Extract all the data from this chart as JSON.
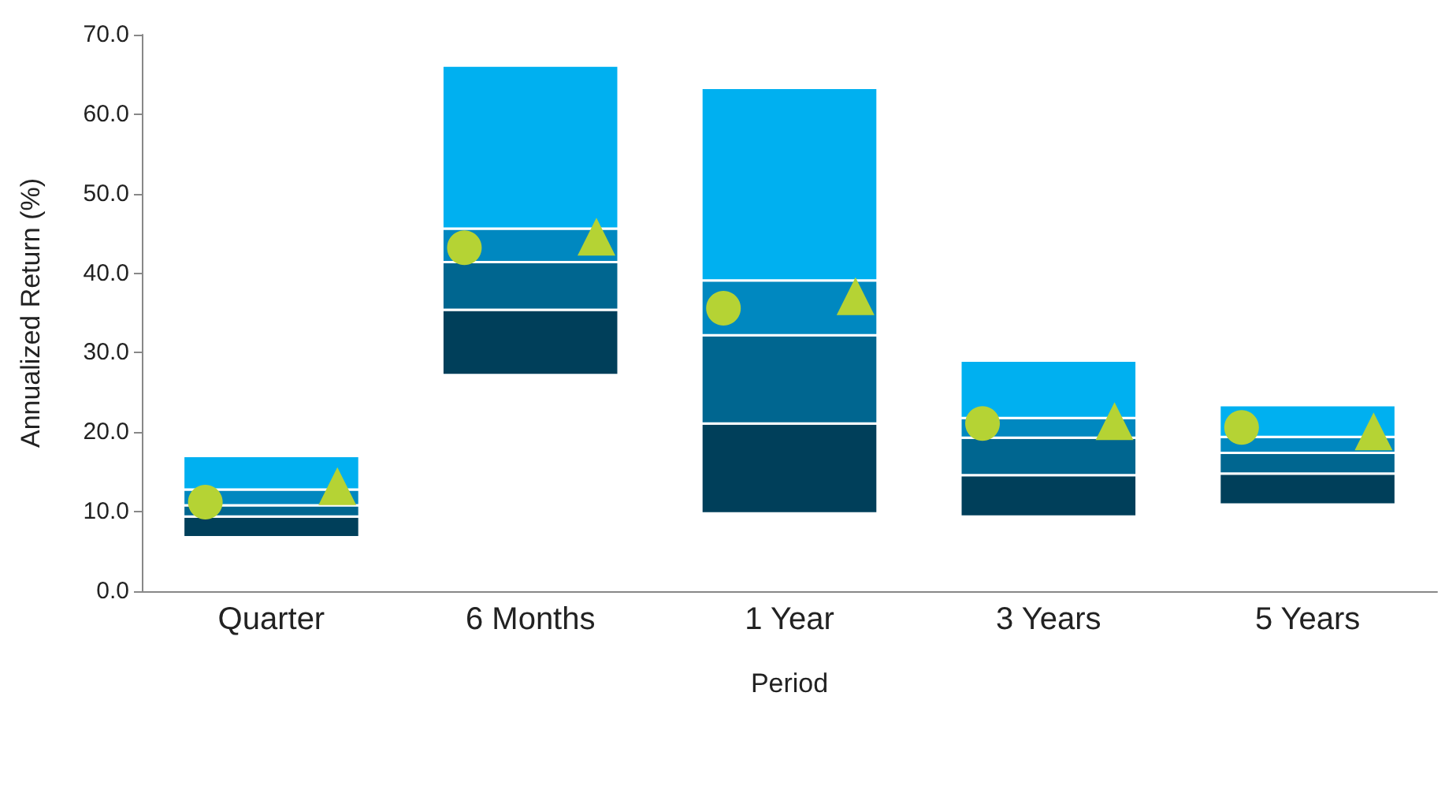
{
  "chart_data": {
    "type": "bar",
    "xlabel": "Period",
    "ylabel": "Annualized Return (%)",
    "categories": [
      "Quarter",
      "6 Months",
      "1 Year",
      "3 Years",
      "5 Years"
    ],
    "ylim": [
      0,
      70
    ],
    "yticks": [
      {
        "value": 0,
        "label": "0.0"
      },
      {
        "value": 10,
        "label": "10.0"
      },
      {
        "value": 20,
        "label": "20.0"
      },
      {
        "value": 30,
        "label": "30.0"
      },
      {
        "value": 40,
        "label": "40.0"
      },
      {
        "value": 50,
        "label": "50.0"
      },
      {
        "value": 60,
        "label": "60.0"
      },
      {
        "value": 70,
        "label": "70.0"
      }
    ],
    "grid": false,
    "series": [
      {
        "color": "#003f5a",
        "base": [
          6.8,
          27.2,
          9.8,
          9.4,
          10.9
        ],
        "values": [
          2.6,
          8.2,
          11.3,
          5.2,
          3.9
        ]
      },
      {
        "color": "#006690",
        "base": [
          9.4,
          35.4,
          21.1,
          14.6,
          14.8
        ],
        "values": [
          1.4,
          6.0,
          11.1,
          4.7,
          2.6
        ]
      },
      {
        "color": "#0088c0",
        "base": [
          10.8,
          41.4,
          32.2,
          19.3,
          17.4
        ],
        "values": [
          2.0,
          4.2,
          6.9,
          2.5,
          2.0
        ]
      },
      {
        "color": "#00b0f0",
        "base": [
          12.8,
          45.6,
          39.1,
          21.8,
          19.4
        ],
        "values": [
          4.2,
          20.5,
          24.2,
          7.2,
          4.0
        ]
      },
      {
        "type": "scatter",
        "marker": "circle",
        "color": "#b5d334",
        "x": [
          "Quarter",
          "6 Months",
          "1 Year",
          "3 Years",
          "5 Years"
        ],
        "values": [
          11.2,
          43.2,
          35.6,
          21.1,
          20.6
        ]
      },
      {
        "type": "scatter",
        "marker": "triangle",
        "color": "#b5d334",
        "x": [
          "Quarter",
          "6 Months",
          "1 Year",
          "3 Years",
          "5 Years"
        ],
        "values": [
          13.2,
          44.6,
          37.1,
          21.4,
          20.1
        ]
      }
    ]
  }
}
